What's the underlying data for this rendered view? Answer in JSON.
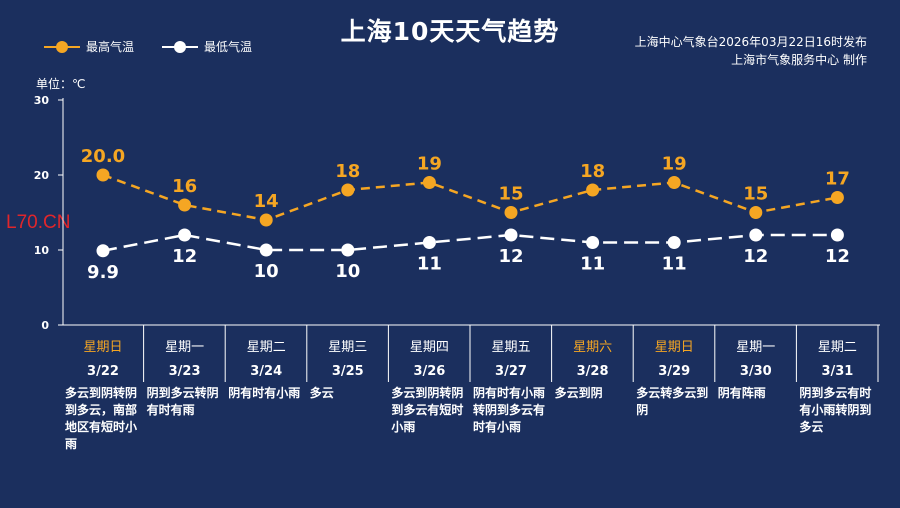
{
  "title": "上海10天天气趋势",
  "legend": {
    "high": "最高气温",
    "low": "最低气温"
  },
  "publisher": {
    "line1": "上海中心气象台2026年03月22日16时发布",
    "line2": "上海市气象服务中心  制作"
  },
  "unit_label": "单位：℃",
  "watermark": "L70.CN",
  "colors": {
    "background": "#1b2f5e",
    "high": "#f5a623",
    "low": "#ffffff",
    "weekend": "#f5a623",
    "weekday": "#ffffff"
  },
  "chart_data": {
    "type": "line",
    "title": "上海10天天气趋势",
    "ylim": [
      0,
      30
    ],
    "yticks": [
      0,
      10,
      20,
      30
    ],
    "grid": false,
    "legend_position": "top-left",
    "categories": [
      "3/22",
      "3/23",
      "3/24",
      "3/25",
      "3/26",
      "3/27",
      "3/28",
      "3/29",
      "3/30",
      "3/31"
    ],
    "weekdays": [
      "星期日",
      "星期一",
      "星期二",
      "星期三",
      "星期四",
      "星期五",
      "星期六",
      "星期日",
      "星期一",
      "星期二"
    ],
    "weekend": [
      true,
      false,
      false,
      false,
      false,
      false,
      true,
      true,
      false,
      false
    ],
    "descriptions": [
      "多云到阴转阴到多云，南部地区有短时小雨",
      "阴到多云转阴有时有雨",
      "阴有时有小雨",
      "多云",
      "多云到阴转阴到多云有短时小雨",
      "阴有时有小雨转阴到多云有时有小雨",
      "多云到阴",
      "多云转多云到阴",
      "阴有阵雨",
      "阴到多云有时有小雨转阴到多云"
    ],
    "series": [
      {
        "name": "最高气温",
        "values": [
          20.0,
          16,
          14,
          18,
          19,
          15,
          18,
          19,
          15,
          17
        ],
        "labels": [
          "20.0",
          "16",
          "14",
          "18",
          "19",
          "15",
          "18",
          "19",
          "15",
          "17"
        ]
      },
      {
        "name": "最低气温",
        "values": [
          9.9,
          12,
          10,
          10,
          11,
          12,
          11,
          11,
          12,
          12
        ],
        "labels": [
          "9.9",
          "12",
          "10",
          "10",
          "11",
          "12",
          "11",
          "11",
          "12",
          "12"
        ]
      }
    ]
  }
}
